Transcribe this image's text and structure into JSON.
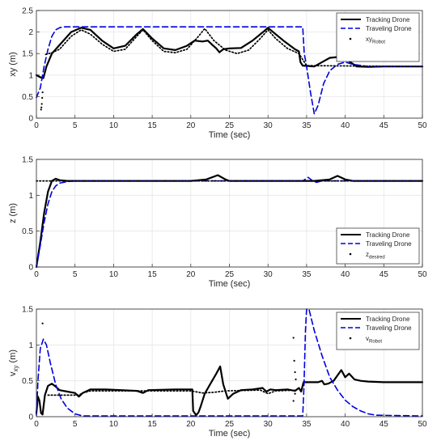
{
  "chart_data": [
    {
      "type": "line",
      "xlabel": "Time (sec)",
      "ylabel": "xy (m)",
      "xlim": [
        0,
        50
      ],
      "ylim": [
        0,
        2.5
      ],
      "xticks": [
        "0",
        "5",
        "10",
        "15",
        "20",
        "25",
        "30",
        "35",
        "40",
        "45",
        "50"
      ],
      "yticks": [
        "0",
        "0.5",
        "1",
        "1.5",
        "2",
        "2.5"
      ],
      "grid": true,
      "legend_position": "top-right",
      "legend": [
        "Tracking Drone",
        "Traveling Drone",
        "xy",
        "Robot"
      ],
      "series": [
        {
          "name": "Tracking Drone",
          "style": "solid",
          "color": "#000000",
          "points": [
            [
              0,
              1.0
            ],
            [
              0.5,
              0.95
            ],
            [
              0.9,
              0.93
            ],
            [
              1.3,
              1.2
            ],
            [
              2,
              1.5
            ],
            [
              3,
              1.7
            ],
            [
              4.5,
              2.0
            ],
            [
              5.8,
              2.1
            ],
            [
              7,
              2.05
            ],
            [
              8.5,
              1.8
            ],
            [
              10,
              1.62
            ],
            [
              11.5,
              1.68
            ],
            [
              13,
              1.95
            ],
            [
              13.8,
              2.07
            ],
            [
              15,
              1.85
            ],
            [
              16.5,
              1.62
            ],
            [
              18,
              1.58
            ],
            [
              19.5,
              1.68
            ],
            [
              20.5,
              1.8
            ],
            [
              21.5,
              1.78
            ],
            [
              22.2,
              1.8
            ],
            [
              22.8,
              1.7
            ],
            [
              23.3,
              1.62
            ],
            [
              23.7,
              1.53
            ],
            [
              24.2,
              1.6
            ],
            [
              25,
              1.62
            ],
            [
              26.5,
              1.63
            ],
            [
              28,
              1.8
            ],
            [
              29.5,
              2.02
            ],
            [
              30,
              2.1
            ],
            [
              31,
              1.95
            ],
            [
              32,
              1.8
            ],
            [
              33.5,
              1.6
            ],
            [
              34,
              1.55
            ],
            [
              34.2,
              1.3
            ],
            [
              34.5,
              1.22
            ],
            [
              36,
              1.2
            ],
            [
              37,
              1.3
            ],
            [
              38,
              1.4
            ],
            [
              39,
              1.42
            ],
            [
              39.7,
              1.45
            ],
            [
              40.5,
              1.32
            ],
            [
              41.5,
              1.2
            ],
            [
              43,
              1.19
            ],
            [
              45,
              1.2
            ],
            [
              50,
              1.2
            ]
          ]
        },
        {
          "name": "Traveling Drone",
          "style": "dashed",
          "color": "#0000dd",
          "points": [
            [
              0,
              0.48
            ],
            [
              0.5,
              0.7
            ],
            [
              1,
              1.2
            ],
            [
              1.5,
              1.6
            ],
            [
              2,
              1.9
            ],
            [
              2.5,
              2.05
            ],
            [
              3,
              2.1
            ],
            [
              3.5,
              2.12
            ],
            [
              34.5,
              2.12
            ],
            [
              34.7,
              1.5
            ],
            [
              35,
              1.2
            ],
            [
              35.5,
              0.6
            ],
            [
              36,
              0.1
            ],
            [
              36.5,
              0.3
            ],
            [
              37.2,
              0.8
            ],
            [
              38,
              1.1
            ],
            [
              39,
              1.25
            ],
            [
              40,
              1.3
            ],
            [
              41,
              1.25
            ],
            [
              43,
              1.2
            ],
            [
              50,
              1.2
            ]
          ]
        },
        {
          "name": "xy Robot",
          "style": "dotted",
          "color": "#000000",
          "points": [
            [
              1.2,
              1.48
            ],
            [
              2,
              1.52
            ],
            [
              3,
              1.6
            ],
            [
              4.5,
              1.9
            ],
            [
              5.8,
              2.05
            ],
            [
              7,
              1.95
            ],
            [
              8.5,
              1.72
            ],
            [
              10,
              1.55
            ],
            [
              11.5,
              1.6
            ],
            [
              13,
              1.9
            ],
            [
              13.8,
              2.05
            ],
            [
              15,
              1.8
            ],
            [
              16.5,
              1.55
            ],
            [
              18,
              1.52
            ],
            [
              19.5,
              1.6
            ],
            [
              21,
              1.9
            ],
            [
              21.8,
              2.08
            ],
            [
              23,
              1.8
            ],
            [
              24.5,
              1.58
            ],
            [
              26,
              1.5
            ],
            [
              27.5,
              1.58
            ],
            [
              29,
              1.85
            ],
            [
              30,
              2.05
            ],
            [
              31,
              1.85
            ],
            [
              32.5,
              1.62
            ],
            [
              34,
              1.5
            ],
            [
              35,
              1.22
            ],
            [
              50,
              1.2
            ]
          ]
        }
      ],
      "outliers": [
        [
          0.6,
          0.2
        ],
        [
          0.65,
          0.25
        ],
        [
          0.7,
          0.33
        ],
        [
          0.75,
          0.47
        ],
        [
          0.8,
          0.6
        ]
      ]
    },
    {
      "type": "line",
      "xlabel": "Time (sec)",
      "ylabel": "z (m)",
      "xlim": [
        0,
        50
      ],
      "ylim": [
        0,
        1.5
      ],
      "xticks": [
        "0",
        "5",
        "10",
        "15",
        "20",
        "25",
        "30",
        "35",
        "40",
        "45",
        "50"
      ],
      "yticks": [
        "0",
        "0.5",
        "1",
        "1.5"
      ],
      "grid": true,
      "legend_position": "bottom-right",
      "legend": [
        "Tracking Drone",
        "Traveling Drone",
        "z",
        "desired"
      ],
      "series": [
        {
          "name": "Tracking Drone",
          "style": "solid",
          "color": "#000000",
          "points": [
            [
              0,
              0
            ],
            [
              0.5,
              0.35
            ],
            [
              1,
              0.75
            ],
            [
              1.5,
              1.05
            ],
            [
              2,
              1.2
            ],
            [
              2.5,
              1.23
            ],
            [
              3,
              1.21
            ],
            [
              4,
              1.2
            ],
            [
              20,
              1.2
            ],
            [
              22,
              1.22
            ],
            [
              23.5,
              1.28
            ],
            [
              24.5,
              1.22
            ],
            [
              25,
              1.2
            ],
            [
              35,
              1.2
            ],
            [
              36,
              1.2
            ],
            [
              38,
              1.22
            ],
            [
              39,
              1.27
            ],
            [
              40,
              1.22
            ],
            [
              41,
              1.2
            ],
            [
              50,
              1.2
            ]
          ]
        },
        {
          "name": "Traveling Drone",
          "style": "dashed",
          "color": "#0000dd",
          "points": [
            [
              0,
              0
            ],
            [
              0.5,
              0.3
            ],
            [
              1,
              0.62
            ],
            [
              1.5,
              0.88
            ],
            [
              2,
              1.05
            ],
            [
              2.5,
              1.13
            ],
            [
              3,
              1.17
            ],
            [
              4,
              1.19
            ],
            [
              5,
              1.2
            ],
            [
              34.5,
              1.2
            ],
            [
              35.2,
              1.25
            ],
            [
              35.8,
              1.2
            ],
            [
              36.3,
              1.18
            ],
            [
              37,
              1.2
            ],
            [
              50,
              1.2
            ]
          ]
        },
        {
          "name": "z desired",
          "style": "dotted",
          "color": "#000000",
          "points": [
            [
              0,
              1.2
            ],
            [
              50,
              1.2
            ]
          ]
        }
      ]
    },
    {
      "type": "line",
      "xlabel": "Time (sec)",
      "ylabel": "v_xy (m)",
      "xlim": [
        0,
        50
      ],
      "ylim": [
        0,
        1.5
      ],
      "xticks": [
        "0",
        "5",
        "10",
        "15",
        "20",
        "25",
        "30",
        "35",
        "40",
        "45",
        "50"
      ],
      "yticks": [
        "0",
        "0.5",
        "1",
        "1.5"
      ],
      "grid": true,
      "legend_position": "top-right",
      "legend": [
        "Tracking Drone",
        "Traveling Drone",
        "v",
        "Robot"
      ],
      "series": [
        {
          "name": "Tracking Drone",
          "style": "solid",
          "color": "#000000",
          "points": [
            [
              0,
              0.05
            ],
            [
              0.2,
              0.28
            ],
            [
              0.4,
              0.22
            ],
            [
              0.6,
              0.05
            ],
            [
              0.8,
              0.03
            ],
            [
              1.1,
              0.3
            ],
            [
              1.5,
              0.43
            ],
            [
              2,
              0.46
            ],
            [
              2.5,
              0.42
            ],
            [
              3,
              0.37
            ],
            [
              4,
              0.35
            ],
            [
              5,
              0.33
            ],
            [
              5.5,
              0.28
            ],
            [
              6,
              0.33
            ],
            [
              7,
              0.38
            ],
            [
              9,
              0.38
            ],
            [
              11,
              0.37
            ],
            [
              13,
              0.36
            ],
            [
              13.8,
              0.33
            ],
            [
              14.5,
              0.37
            ],
            [
              18,
              0.38
            ],
            [
              20.2,
              0.38
            ],
            [
              20.3,
              0.08
            ],
            [
              20.7,
              0.02
            ],
            [
              21,
              0.06
            ],
            [
              21.3,
              0.15
            ],
            [
              21.8,
              0.32
            ],
            [
              22.5,
              0.45
            ],
            [
              23.3,
              0.6
            ],
            [
              23.8,
              0.7
            ],
            [
              24.2,
              0.45
            ],
            [
              24.8,
              0.25
            ],
            [
              25.5,
              0.32
            ],
            [
              26.5,
              0.37
            ],
            [
              28,
              0.38
            ],
            [
              29.3,
              0.4
            ],
            [
              29.8,
              0.35
            ],
            [
              30.3,
              0.38
            ],
            [
              31,
              0.37
            ],
            [
              32.5,
              0.38
            ],
            [
              33.5,
              0.36
            ],
            [
              34,
              0.4
            ],
            [
              34.3,
              0.35
            ],
            [
              34.6,
              0.48
            ],
            [
              36.5,
              0.48
            ],
            [
              37,
              0.5
            ],
            [
              37.3,
              0.45
            ],
            [
              37.8,
              0.46
            ],
            [
              38.5,
              0.5
            ],
            [
              39.5,
              0.65
            ],
            [
              40,
              0.55
            ],
            [
              40.5,
              0.6
            ],
            [
              41.2,
              0.52
            ],
            [
              42,
              0.5
            ],
            [
              43,
              0.49
            ],
            [
              45,
              0.48
            ],
            [
              50,
              0.48
            ]
          ]
        },
        {
          "name": "Traveling Drone",
          "style": "dashed",
          "color": "#0000dd",
          "points": [
            [
              0,
              0.02
            ],
            [
              0.2,
              0.5
            ],
            [
              0.5,
              0.95
            ],
            [
              0.9,
              1.08
            ],
            [
              1.3,
              1.0
            ],
            [
              1.8,
              0.75
            ],
            [
              2.5,
              0.45
            ],
            [
              3.2,
              0.25
            ],
            [
              4,
              0.12
            ],
            [
              5,
              0.04
            ],
            [
              6,
              0.01
            ],
            [
              34.5,
              0.01
            ],
            [
              34.65,
              0.4
            ],
            [
              34.85,
              1.2
            ],
            [
              35,
              1.5
            ],
            [
              35.3,
              1.5
            ],
            [
              36,
              1.2
            ],
            [
              37,
              0.85
            ],
            [
              38,
              0.55
            ],
            [
              39,
              0.37
            ],
            [
              40,
              0.23
            ],
            [
              41,
              0.14
            ],
            [
              42,
              0.08
            ],
            [
              43,
              0.04
            ],
            [
              44,
              0.02
            ],
            [
              50,
              0.01
            ]
          ]
        },
        {
          "name": "v Robot",
          "style": "dotted",
          "color": "#000000",
          "points": [
            [
              1.5,
              0.3
            ],
            [
              5.5,
              0.3
            ],
            [
              6,
              0.33
            ],
            [
              7,
              0.36
            ],
            [
              20,
              0.36
            ],
            [
              21.5,
              0.33
            ],
            [
              23,
              0.34
            ],
            [
              24.5,
              0.36
            ],
            [
              29,
              0.37
            ],
            [
              30,
              0.32
            ],
            [
              31,
              0.36
            ],
            [
              33.8,
              0.37
            ]
          ]
        }
      ],
      "outliers": [
        [
          0.8,
          1.3
        ],
        [
          33.3,
          1.1
        ],
        [
          33.4,
          0.78
        ],
        [
          33.5,
          0.62
        ],
        [
          33.6,
          0.52
        ],
        [
          33.3,
          0.22
        ],
        [
          33.5,
          0.32
        ]
      ]
    }
  ]
}
